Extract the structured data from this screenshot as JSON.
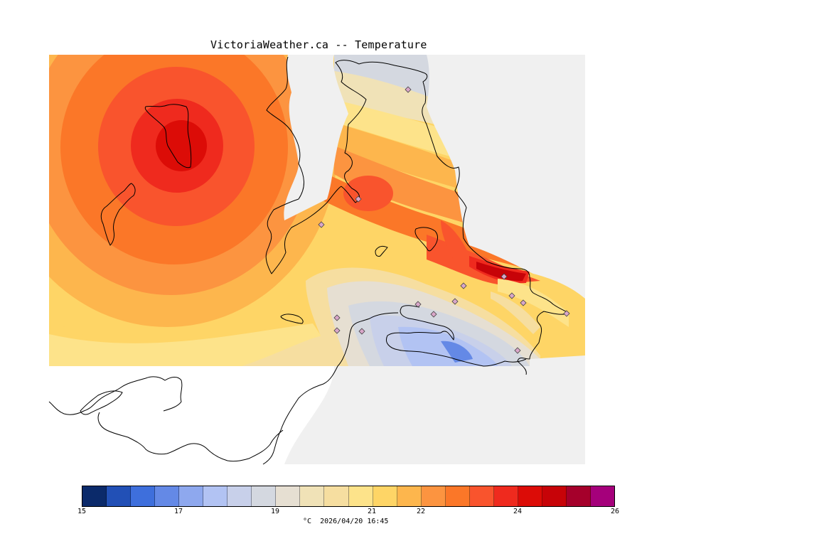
{
  "title": "VictoriaWeather.ca -- Temperature",
  "legend": {
    "ticks": [
      "15",
      "17",
      "19",
      "21",
      "22",
      "24",
      "26"
    ],
    "units": "°C",
    "timestamp": "2026/04/20 16:45",
    "colors": [
      "#0b2a6a",
      "#2250b6",
      "#3e6fdc",
      "#6489e6",
      "#8ea8ee",
      "#b2c3f3",
      "#c8d0ea",
      "#d4d8e0",
      "#e6dfd2",
      "#f0e2b7",
      "#f6dea0",
      "#fde38a",
      "#fed566",
      "#fdb64d",
      "#fc9440",
      "#fb7728",
      "#f9542d",
      "#ef2a1e",
      "#dc0c07",
      "#c70308",
      "#a5002b",
      "#a5007b"
    ]
  },
  "colors": {
    "background_land": "#f0f0f0",
    "outside": "#ffffff",
    "station_marker": "#d9a6c9"
  },
  "map": {
    "stations_label": "weather station markers",
    "station_icon": "diamond-icon"
  }
}
